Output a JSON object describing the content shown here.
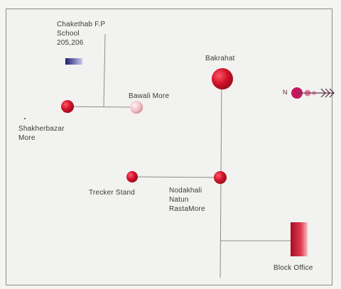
{
  "map": {
    "places": {
      "chakethab": "Chakethab F.P\nSchool\n205,206",
      "bakrahat": "Bakrahat",
      "bawali": "Bawali More",
      "shakherbazar": "Shakherbazar\nMore",
      "trecker": "Trecker Stand",
      "nodakhali": "Nodakhali\nNatun\nRastaMore",
      "block_office": "Block Office"
    },
    "compass": {
      "north_letter": "N"
    },
    "colors": {
      "road": "#8c8c8c",
      "marker_red": "#c8102e",
      "marker_pink": "#e8a4ad",
      "school_marker": "#2a2a7a",
      "compass": "#c2185b"
    }
  }
}
